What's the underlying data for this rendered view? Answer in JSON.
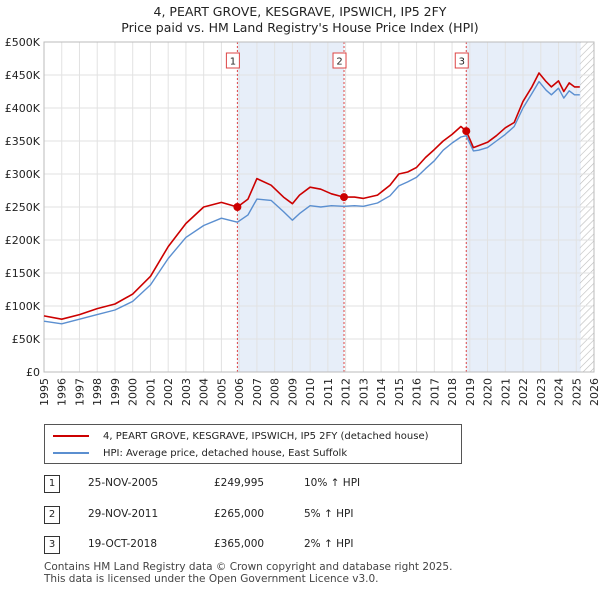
{
  "title_line1": "4, PEART GROVE, KESGRAVE, IPSWICH, IP5 2FY",
  "title_line2": "Price paid vs. HM Land Registry's House Price Index (HPI)",
  "chart_data": {
    "type": "line",
    "ylim": [
      0,
      500000
    ],
    "xlim": [
      1995,
      2026
    ],
    "y_ticks": [
      0,
      50000,
      100000,
      150000,
      200000,
      250000,
      300000,
      350000,
      400000,
      450000,
      500000
    ],
    "y_tick_labels": [
      "£0",
      "£50K",
      "£100K",
      "£150K",
      "£200K",
      "£250K",
      "£300K",
      "£350K",
      "£400K",
      "£450K",
      "£500K"
    ],
    "x_ticks": [
      1995,
      1996,
      1997,
      1998,
      1999,
      2000,
      2001,
      2002,
      2003,
      2004,
      2005,
      2006,
      2007,
      2008,
      2009,
      2010,
      2011,
      2012,
      2013,
      2014,
      2015,
      2016,
      2017,
      2018,
      2019,
      2020,
      2021,
      2022,
      2023,
      2024,
      2025,
      2026
    ],
    "x_tick_labels": [
      "1995",
      "1996",
      "1997",
      "1998",
      "1999",
      "2000",
      "2001",
      "2002",
      "2003",
      "2004",
      "2005",
      "2006",
      "2007",
      "2008",
      "2009",
      "2010",
      "2011",
      "2012",
      "2013",
      "2014",
      "2015",
      "2016",
      "2017",
      "2018",
      "2019",
      "2020",
      "2021",
      "2022",
      "2023",
      "2024",
      "2025",
      "2026"
    ],
    "grid": true,
    "shaded_periods": [
      [
        2005.9,
        2011.91
      ],
      [
        2018.8,
        2025.25
      ]
    ],
    "hatched_after": 2025.2,
    "series": [
      {
        "name": "4, PEART GROVE, KESGRAVE, IPSWICH, IP5 2FY (detached house)",
        "color": "#cc0000",
        "x": [
          1995.0,
          1996.0,
          1997.0,
          1998.0,
          1999.0,
          2000.0,
          2001.0,
          2002.0,
          2003.0,
          2004.0,
          2005.0,
          2005.9,
          2006.5,
          2007.0,
          2007.8,
          2008.5,
          2009.0,
          2009.4,
          2010.0,
          2010.6,
          2011.2,
          2011.9,
          2012.5,
          2013.0,
          2013.8,
          2014.5,
          2015.0,
          2015.5,
          2016.0,
          2016.5,
          2017.0,
          2017.5,
          2018.0,
          2018.5,
          2018.8,
          2019.2,
          2019.5,
          2020.0,
          2020.5,
          2021.0,
          2021.5,
          2022.0,
          2022.5,
          2022.9,
          2023.3,
          2023.6,
          2024.0,
          2024.3,
          2024.6,
          2024.9,
          2025.2
        ],
        "y": [
          85000,
          80000,
          87000,
          96000,
          103000,
          118000,
          145000,
          190000,
          225000,
          250000,
          257000,
          249995,
          262000,
          293000,
          283000,
          265000,
          255000,
          268000,
          280000,
          277000,
          270000,
          265000,
          265000,
          263000,
          268000,
          283000,
          300000,
          303000,
          310000,
          325000,
          337000,
          350000,
          360000,
          372000,
          365000,
          340000,
          343000,
          348000,
          358000,
          370000,
          378000,
          410000,
          432000,
          453000,
          440000,
          432000,
          441000,
          425000,
          438000,
          432000,
          432000
        ]
      },
      {
        "name": "HPI: Average price, detached house, East Suffolk",
        "color": "#5b8fd0",
        "x": [
          1995.0,
          1996.0,
          1997.0,
          1998.0,
          1999.0,
          2000.0,
          2001.0,
          2002.0,
          2003.0,
          2004.0,
          2005.0,
          2005.9,
          2006.5,
          2007.0,
          2007.8,
          2008.5,
          2009.0,
          2009.4,
          2010.0,
          2010.6,
          2011.2,
          2011.9,
          2012.5,
          2013.0,
          2013.8,
          2014.5,
          2015.0,
          2015.5,
          2016.0,
          2016.5,
          2017.0,
          2017.5,
          2018.0,
          2018.5,
          2018.8,
          2019.2,
          2019.5,
          2020.0,
          2020.5,
          2021.0,
          2021.5,
          2022.0,
          2022.5,
          2022.9,
          2023.3,
          2023.6,
          2024.0,
          2024.3,
          2024.6,
          2024.9,
          2025.2
        ],
        "y": [
          77000,
          73000,
          80000,
          87000,
          94000,
          107000,
          132000,
          172000,
          204000,
          222000,
          233000,
          227000,
          238000,
          262000,
          260000,
          243000,
          230000,
          240000,
          252000,
          250000,
          252000,
          251000,
          252000,
          251000,
          256000,
          267000,
          282000,
          288000,
          295000,
          308000,
          320000,
          336000,
          347000,
          356000,
          358000,
          335000,
          336000,
          340000,
          350000,
          360000,
          372000,
          400000,
          422000,
          440000,
          427000,
          420000,
          430000,
          415000,
          426000,
          420000,
          420000
        ]
      }
    ],
    "markers": [
      {
        "label": "1",
        "x": 2005.9,
        "y": 249995
      },
      {
        "label": "2",
        "x": 2011.91,
        "y": 265000
      },
      {
        "label": "3",
        "x": 2018.8,
        "y": 365000
      }
    ]
  },
  "legend": [
    {
      "label": "4, PEART GROVE, KESGRAVE, IPSWICH, IP5 2FY (detached house)",
      "color": "#cc0000"
    },
    {
      "label": "HPI: Average price, detached house, East Suffolk",
      "color": "#5b8fd0"
    }
  ],
  "transactions": [
    {
      "num": "1",
      "date": "25-NOV-2005",
      "price": "£249,995",
      "hpi": "10% ↑ HPI"
    },
    {
      "num": "2",
      "date": "29-NOV-2011",
      "price": "£265,000",
      "hpi": "5% ↑ HPI"
    },
    {
      "num": "3",
      "date": "19-OCT-2018",
      "price": "£365,000",
      "hpi": "2% ↑ HPI"
    }
  ],
  "footer_line1": "Contains HM Land Registry data © Crown copyright and database right 2025.",
  "footer_line2": "This data is licensed under the Open Government Licence v3.0."
}
